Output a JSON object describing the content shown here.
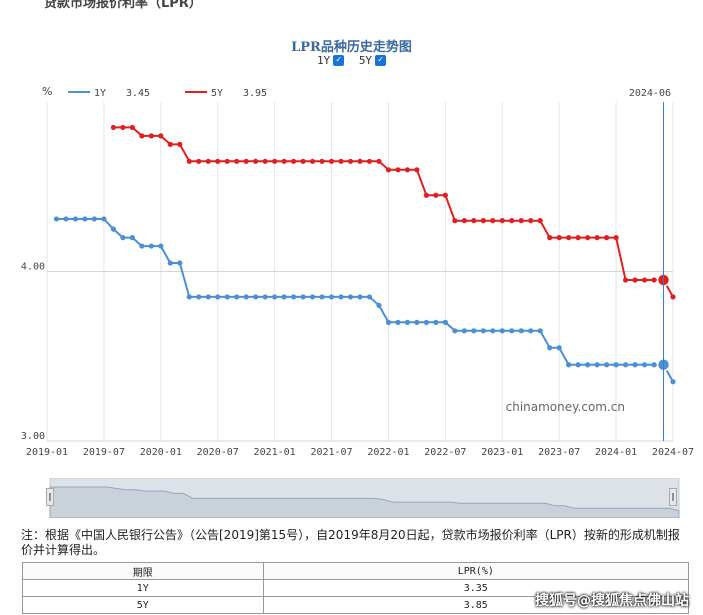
{
  "page": {
    "heading": "贷款市场报价利率（LPR）"
  },
  "chart_data": {
    "type": "line",
    "title": "LPR品种历史走势图",
    "ylabel": "%",
    "hover_date": "2024-06",
    "y_ticks": [
      "3.00",
      "4.00"
    ],
    "ylim": [
      3.0,
      5.0
    ],
    "x_ticks": [
      "2019-01",
      "2019-07",
      "2020-01",
      "2020-07",
      "2021-01",
      "2021-07",
      "2022-01",
      "2022-07",
      "2023-01",
      "2023-07",
      "2024-01",
      "2024-07"
    ],
    "grid": true,
    "legend_position": "top-left",
    "watermark": "chinamoney.com.cn",
    "series": [
      {
        "name": "1Y",
        "hover_value": "3.45",
        "color": "#4a90d2",
        "checkbox_label": "1Y",
        "checked": true,
        "points": [
          [
            "2019-02",
            4.31
          ],
          [
            "2019-03",
            4.31
          ],
          [
            "2019-04",
            4.31
          ],
          [
            "2019-05",
            4.31
          ],
          [
            "2019-06",
            4.31
          ],
          [
            "2019-07",
            4.31
          ],
          [
            "2019-08",
            4.25
          ],
          [
            "2019-09",
            4.2
          ],
          [
            "2019-10",
            4.2
          ],
          [
            "2019-11",
            4.15
          ],
          [
            "2019-12",
            4.15
          ],
          [
            "2020-01",
            4.15
          ],
          [
            "2020-02",
            4.05
          ],
          [
            "2020-03",
            4.05
          ],
          [
            "2020-04",
            3.85
          ],
          [
            "2020-05",
            3.85
          ],
          [
            "2020-06",
            3.85
          ],
          [
            "2020-07",
            3.85
          ],
          [
            "2020-08",
            3.85
          ],
          [
            "2020-09",
            3.85
          ],
          [
            "2020-10",
            3.85
          ],
          [
            "2020-11",
            3.85
          ],
          [
            "2020-12",
            3.85
          ],
          [
            "2021-01",
            3.85
          ],
          [
            "2021-02",
            3.85
          ],
          [
            "2021-03",
            3.85
          ],
          [
            "2021-04",
            3.85
          ],
          [
            "2021-05",
            3.85
          ],
          [
            "2021-06",
            3.85
          ],
          [
            "2021-07",
            3.85
          ],
          [
            "2021-08",
            3.85
          ],
          [
            "2021-09",
            3.85
          ],
          [
            "2021-10",
            3.85
          ],
          [
            "2021-11",
            3.85
          ],
          [
            "2021-12",
            3.8
          ],
          [
            "2022-01",
            3.7
          ],
          [
            "2022-02",
            3.7
          ],
          [
            "2022-03",
            3.7
          ],
          [
            "2022-04",
            3.7
          ],
          [
            "2022-05",
            3.7
          ],
          [
            "2022-06",
            3.7
          ],
          [
            "2022-07",
            3.7
          ],
          [
            "2022-08",
            3.65
          ],
          [
            "2022-09",
            3.65
          ],
          [
            "2022-10",
            3.65
          ],
          [
            "2022-11",
            3.65
          ],
          [
            "2022-12",
            3.65
          ],
          [
            "2023-01",
            3.65
          ],
          [
            "2023-02",
            3.65
          ],
          [
            "2023-03",
            3.65
          ],
          [
            "2023-04",
            3.65
          ],
          [
            "2023-05",
            3.65
          ],
          [
            "2023-06",
            3.55
          ],
          [
            "2023-07",
            3.55
          ],
          [
            "2023-08",
            3.45
          ],
          [
            "2023-09",
            3.45
          ],
          [
            "2023-10",
            3.45
          ],
          [
            "2023-11",
            3.45
          ],
          [
            "2023-12",
            3.45
          ],
          [
            "2024-01",
            3.45
          ],
          [
            "2024-02",
            3.45
          ],
          [
            "2024-03",
            3.45
          ],
          [
            "2024-04",
            3.45
          ],
          [
            "2024-05",
            3.45
          ],
          [
            "2024-06",
            3.45
          ],
          [
            "2024-07",
            3.35
          ]
        ]
      },
      {
        "name": "5Y",
        "hover_value": "3.95",
        "color": "#e02020",
        "checkbox_label": "5Y",
        "checked": true,
        "points": [
          [
            "2019-08",
            4.85
          ],
          [
            "2019-09",
            4.85
          ],
          [
            "2019-10",
            4.85
          ],
          [
            "2019-11",
            4.8
          ],
          [
            "2019-12",
            4.8
          ],
          [
            "2020-01",
            4.8
          ],
          [
            "2020-02",
            4.75
          ],
          [
            "2020-03",
            4.75
          ],
          [
            "2020-04",
            4.65
          ],
          [
            "2020-05",
            4.65
          ],
          [
            "2020-06",
            4.65
          ],
          [
            "2020-07",
            4.65
          ],
          [
            "2020-08",
            4.65
          ],
          [
            "2020-09",
            4.65
          ],
          [
            "2020-10",
            4.65
          ],
          [
            "2020-11",
            4.65
          ],
          [
            "2020-12",
            4.65
          ],
          [
            "2021-01",
            4.65
          ],
          [
            "2021-02",
            4.65
          ],
          [
            "2021-03",
            4.65
          ],
          [
            "2021-04",
            4.65
          ],
          [
            "2021-05",
            4.65
          ],
          [
            "2021-06",
            4.65
          ],
          [
            "2021-07",
            4.65
          ],
          [
            "2021-08",
            4.65
          ],
          [
            "2021-09",
            4.65
          ],
          [
            "2021-10",
            4.65
          ],
          [
            "2021-11",
            4.65
          ],
          [
            "2021-12",
            4.65
          ],
          [
            "2022-01",
            4.6
          ],
          [
            "2022-02",
            4.6
          ],
          [
            "2022-03",
            4.6
          ],
          [
            "2022-04",
            4.6
          ],
          [
            "2022-05",
            4.45
          ],
          [
            "2022-06",
            4.45
          ],
          [
            "2022-07",
            4.45
          ],
          [
            "2022-08",
            4.3
          ],
          [
            "2022-09",
            4.3
          ],
          [
            "2022-10",
            4.3
          ],
          [
            "2022-11",
            4.3
          ],
          [
            "2022-12",
            4.3
          ],
          [
            "2023-01",
            4.3
          ],
          [
            "2023-02",
            4.3
          ],
          [
            "2023-03",
            4.3
          ],
          [
            "2023-04",
            4.3
          ],
          [
            "2023-05",
            4.3
          ],
          [
            "2023-06",
            4.2
          ],
          [
            "2023-07",
            4.2
          ],
          [
            "2023-08",
            4.2
          ],
          [
            "2023-09",
            4.2
          ],
          [
            "2023-10",
            4.2
          ],
          [
            "2023-11",
            4.2
          ],
          [
            "2023-12",
            4.2
          ],
          [
            "2024-01",
            4.2
          ],
          [
            "2024-02",
            3.95
          ],
          [
            "2024-03",
            3.95
          ],
          [
            "2024-04",
            3.95
          ],
          [
            "2024-05",
            3.95
          ],
          [
            "2024-06",
            3.95
          ],
          [
            "2024-07",
            3.85
          ]
        ]
      }
    ]
  },
  "note": "注：根据《中国人民银行公告》（公告[2019]第15号），自2019年8月20日起，贷款市场报价利率（LPR）按新的形成机制报价并计算得出。",
  "table": {
    "headers": [
      "期限",
      "LPR(%)"
    ],
    "rows": [
      [
        "1Y",
        "3.35"
      ],
      [
        "5Y",
        "3.85"
      ]
    ]
  },
  "source_watermark": "搜狐号@搜狐焦点佛山站"
}
